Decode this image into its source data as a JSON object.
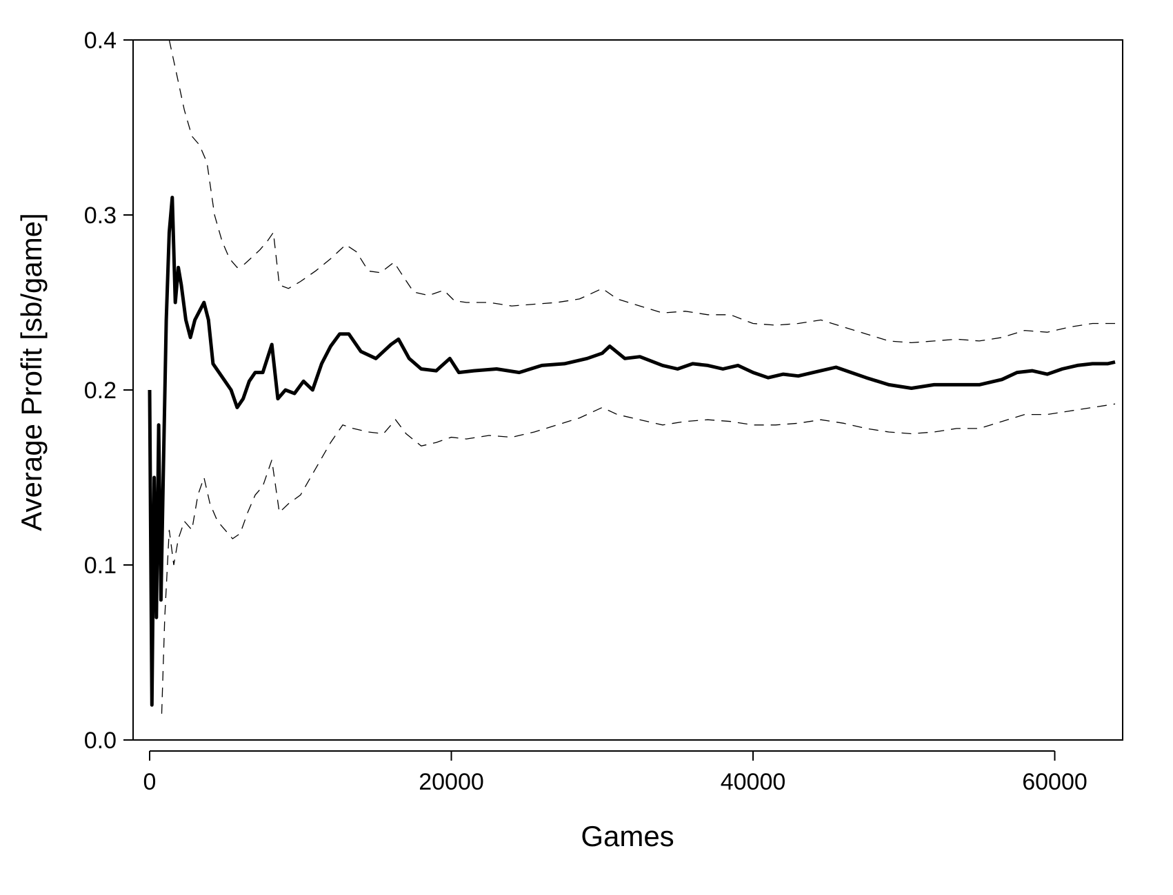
{
  "chart_data": {
    "type": "line",
    "title": "",
    "xlabel": "Games",
    "ylabel": "Average Profit [sb/game]",
    "xlim": [
      0,
      64500
    ],
    "ylim": [
      0,
      0.4
    ],
    "xticks": [
      0,
      20000,
      40000,
      60000
    ],
    "xtick_labels": [
      "0",
      "20000",
      "40000",
      "60000"
    ],
    "yticks": [
      0,
      0.1,
      0.2,
      0.3,
      0.4
    ],
    "ytick_labels": [
      "0.0",
      "0.1",
      "0.2",
      "0.3",
      "0.4"
    ],
    "grid": false,
    "legend": "none",
    "series": [
      {
        "style": "solid-thick",
        "color": "#000000",
        "points": [
          [
            0,
            0.2
          ],
          [
            150,
            0.02
          ],
          [
            300,
            0.15
          ],
          [
            450,
            0.07
          ],
          [
            600,
            0.18
          ],
          [
            750,
            0.08
          ],
          [
            900,
            0.15
          ],
          [
            1100,
            0.24
          ],
          [
            1300,
            0.29
          ],
          [
            1500,
            0.31
          ],
          [
            1700,
            0.25
          ],
          [
            1900,
            0.27
          ],
          [
            2100,
            0.26
          ],
          [
            2400,
            0.24
          ],
          [
            2700,
            0.23
          ],
          [
            3000,
            0.24
          ],
          [
            3300,
            0.245
          ],
          [
            3600,
            0.25
          ],
          [
            3900,
            0.24
          ],
          [
            4200,
            0.215
          ],
          [
            4600,
            0.21
          ],
          [
            5000,
            0.205
          ],
          [
            5400,
            0.2
          ],
          [
            5800,
            0.19
          ],
          [
            6200,
            0.195
          ],
          [
            6600,
            0.205
          ],
          [
            7000,
            0.21
          ],
          [
            7500,
            0.21
          ],
          [
            8100,
            0.226
          ],
          [
            8500,
            0.195
          ],
          [
            9000,
            0.2
          ],
          [
            9600,
            0.198
          ],
          [
            10200,
            0.205
          ],
          [
            10800,
            0.2
          ],
          [
            11400,
            0.215
          ],
          [
            12000,
            0.225
          ],
          [
            12600,
            0.232
          ],
          [
            13200,
            0.232
          ],
          [
            14000,
            0.222
          ],
          [
            15000,
            0.218
          ],
          [
            16000,
            0.226
          ],
          [
            16500,
            0.229
          ],
          [
            17200,
            0.218
          ],
          [
            18000,
            0.212
          ],
          [
            19000,
            0.211
          ],
          [
            19900,
            0.218
          ],
          [
            20500,
            0.21
          ],
          [
            21500,
            0.211
          ],
          [
            23000,
            0.212
          ],
          [
            24500,
            0.21
          ],
          [
            26000,
            0.214
          ],
          [
            27500,
            0.215
          ],
          [
            29000,
            0.218
          ],
          [
            30000,
            0.221
          ],
          [
            30500,
            0.225
          ],
          [
            31500,
            0.218
          ],
          [
            32500,
            0.219
          ],
          [
            34000,
            0.214
          ],
          [
            35000,
            0.212
          ],
          [
            36000,
            0.215
          ],
          [
            37000,
            0.214
          ],
          [
            38000,
            0.212
          ],
          [
            39000,
            0.214
          ],
          [
            40000,
            0.21
          ],
          [
            41000,
            0.207
          ],
          [
            42000,
            0.209
          ],
          [
            43000,
            0.208
          ],
          [
            44000,
            0.21
          ],
          [
            45500,
            0.213
          ],
          [
            46500,
            0.21
          ],
          [
            47500,
            0.207
          ],
          [
            49000,
            0.203
          ],
          [
            50500,
            0.201
          ],
          [
            52000,
            0.203
          ],
          [
            53500,
            0.203
          ],
          [
            55000,
            0.203
          ],
          [
            56500,
            0.206
          ],
          [
            57500,
            0.21
          ],
          [
            58500,
            0.211
          ],
          [
            59500,
            0.209
          ],
          [
            60500,
            0.212
          ],
          [
            61500,
            0.214
          ],
          [
            62500,
            0.215
          ],
          [
            63500,
            0.215
          ],
          [
            64000,
            0.216
          ]
        ]
      },
      {
        "style": "dashed-thin",
        "color": "#000000",
        "points": [
          [
            1300,
            0.4
          ],
          [
            1800,
            0.38
          ],
          [
            2300,
            0.36
          ],
          [
            2800,
            0.345
          ],
          [
            3300,
            0.34
          ],
          [
            3800,
            0.33
          ],
          [
            4300,
            0.3
          ],
          [
            4800,
            0.285
          ],
          [
            5300,
            0.275
          ],
          [
            5800,
            0.27
          ],
          [
            6300,
            0.272
          ],
          [
            6800,
            0.276
          ],
          [
            7300,
            0.28
          ],
          [
            7800,
            0.285
          ],
          [
            8200,
            0.29
          ],
          [
            8600,
            0.26
          ],
          [
            9200,
            0.258
          ],
          [
            10000,
            0.262
          ],
          [
            11000,
            0.268
          ],
          [
            12000,
            0.275
          ],
          [
            13000,
            0.283
          ],
          [
            13700,
            0.279
          ],
          [
            14500,
            0.268
          ],
          [
            15300,
            0.267
          ],
          [
            16200,
            0.273
          ],
          [
            16800,
            0.265
          ],
          [
            17500,
            0.256
          ],
          [
            18500,
            0.254
          ],
          [
            19500,
            0.257
          ],
          [
            20200,
            0.251
          ],
          [
            21000,
            0.25
          ],
          [
            22500,
            0.25
          ],
          [
            24000,
            0.248
          ],
          [
            25500,
            0.249
          ],
          [
            27000,
            0.25
          ],
          [
            28500,
            0.252
          ],
          [
            30000,
            0.258
          ],
          [
            31000,
            0.252
          ],
          [
            32500,
            0.248
          ],
          [
            34000,
            0.244
          ],
          [
            35500,
            0.245
          ],
          [
            37000,
            0.243
          ],
          [
            38500,
            0.243
          ],
          [
            40000,
            0.238
          ],
          [
            41500,
            0.237
          ],
          [
            43000,
            0.238
          ],
          [
            44500,
            0.24
          ],
          [
            46000,
            0.236
          ],
          [
            47500,
            0.232
          ],
          [
            49000,
            0.228
          ],
          [
            50500,
            0.227
          ],
          [
            52000,
            0.228
          ],
          [
            53500,
            0.229
          ],
          [
            55000,
            0.228
          ],
          [
            56500,
            0.23
          ],
          [
            58000,
            0.234
          ],
          [
            59500,
            0.233
          ],
          [
            61000,
            0.236
          ],
          [
            62500,
            0.238
          ],
          [
            64000,
            0.238
          ]
        ]
      },
      {
        "style": "dashed-thin",
        "color": "#000000",
        "points": [
          [
            800,
            0.015
          ],
          [
            1000,
            0.07
          ],
          [
            1300,
            0.12
          ],
          [
            1600,
            0.1
          ],
          [
            1900,
            0.115
          ],
          [
            2300,
            0.125
          ],
          [
            2800,
            0.12
          ],
          [
            3200,
            0.14
          ],
          [
            3600,
            0.15
          ],
          [
            4000,
            0.135
          ],
          [
            4500,
            0.125
          ],
          [
            5000,
            0.12
          ],
          [
            5500,
            0.115
          ],
          [
            6000,
            0.118
          ],
          [
            6500,
            0.13
          ],
          [
            7000,
            0.14
          ],
          [
            7500,
            0.145
          ],
          [
            8100,
            0.16
          ],
          [
            8600,
            0.13
          ],
          [
            9200,
            0.135
          ],
          [
            10000,
            0.14
          ],
          [
            11000,
            0.155
          ],
          [
            12000,
            0.17
          ],
          [
            12800,
            0.18
          ],
          [
            13500,
            0.178
          ],
          [
            14500,
            0.176
          ],
          [
            15500,
            0.175
          ],
          [
            16300,
            0.183
          ],
          [
            17000,
            0.175
          ],
          [
            18000,
            0.168
          ],
          [
            19000,
            0.17
          ],
          [
            20000,
            0.173
          ],
          [
            21000,
            0.172
          ],
          [
            22500,
            0.174
          ],
          [
            24000,
            0.173
          ],
          [
            25500,
            0.176
          ],
          [
            27000,
            0.18
          ],
          [
            28500,
            0.184
          ],
          [
            30000,
            0.19
          ],
          [
            31000,
            0.186
          ],
          [
            32500,
            0.183
          ],
          [
            34000,
            0.18
          ],
          [
            35500,
            0.182
          ],
          [
            37000,
            0.183
          ],
          [
            38500,
            0.182
          ],
          [
            40000,
            0.18
          ],
          [
            41500,
            0.18
          ],
          [
            43000,
            0.181
          ],
          [
            44500,
            0.183
          ],
          [
            46000,
            0.181
          ],
          [
            47500,
            0.178
          ],
          [
            49000,
            0.176
          ],
          [
            50500,
            0.175
          ],
          [
            52000,
            0.176
          ],
          [
            53500,
            0.178
          ],
          [
            55000,
            0.178
          ],
          [
            56500,
            0.182
          ],
          [
            58000,
            0.186
          ],
          [
            59500,
            0.186
          ],
          [
            61000,
            0.188
          ],
          [
            62500,
            0.19
          ],
          [
            64000,
            0.192
          ]
        ]
      }
    ]
  }
}
